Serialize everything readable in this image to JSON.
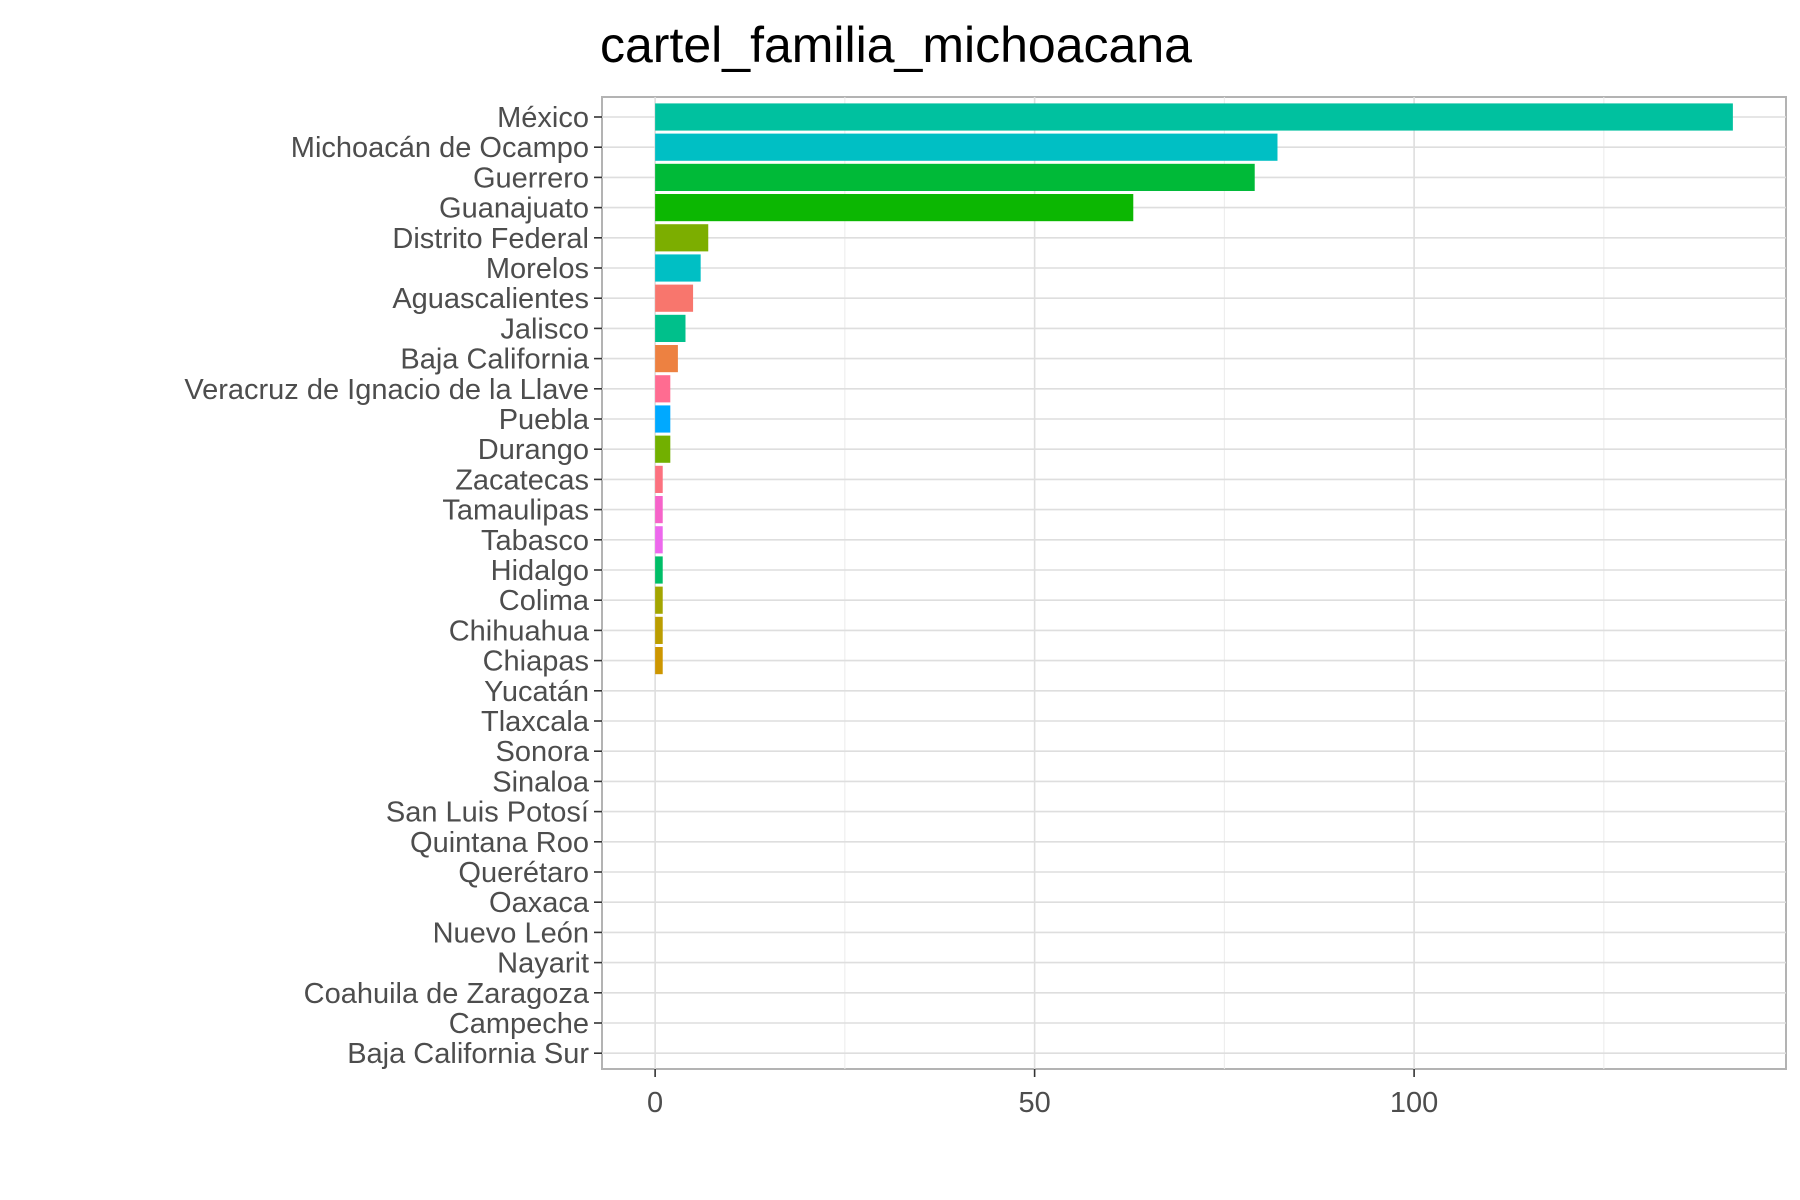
{
  "chart_data": {
    "type": "bar",
    "orientation": "horizontal",
    "title": "cartel_familia_michoacana",
    "xlabel": "",
    "ylabel": "",
    "xlim": [
      -7,
      149
    ],
    "x_ticks": [
      0,
      50,
      100
    ],
    "x_tick_labels": [
      "0",
      "50",
      "100"
    ],
    "grid": true,
    "legend": "none",
    "categories": [
      "México",
      "Michoacán de Ocampo",
      "Guerrero",
      "Guanajuato",
      "Distrito Federal",
      "Morelos",
      "Aguascalientes",
      "Jalisco",
      "Baja California",
      "Veracruz de Ignacio de la Llave",
      "Puebla",
      "Durango",
      "Zacatecas",
      "Tamaulipas",
      "Tabasco",
      "Hidalgo",
      "Colima",
      "Chihuahua",
      "Chiapas",
      "Yucatán",
      "Tlaxcala",
      "Sonora",
      "Sinaloa",
      "San Luis Potosí",
      "Quintana Roo",
      "Querétaro",
      "Oaxaca",
      "Nuevo León",
      "Nayarit",
      "Coahuila de Zaragoza",
      "Campeche",
      "Baja California Sur"
    ],
    "values": [
      142,
      82,
      79,
      63,
      7,
      6,
      5,
      4,
      3,
      2,
      2,
      2,
      1,
      1,
      1,
      1,
      1,
      1,
      1,
      0,
      0,
      0,
      0,
      0,
      0,
      0,
      0,
      0,
      0,
      0,
      0,
      0
    ],
    "colors": [
      "#00C19F",
      "#00BFC4",
      "#00BA38",
      "#0CB702",
      "#7CAE00",
      "#00BFC4",
      "#F8766D",
      "#00C08B",
      "#ED8141",
      "#FF6C91",
      "#00A9FF",
      "#72B000",
      "#FC717F",
      "#F663C9",
      "#ED68ED",
      "#00BE67",
      "#A3A500",
      "#BB9D00",
      "#CD9600",
      "#FFFFFF",
      "#FFFFFF",
      "#FFFFFF",
      "#FFFFFF",
      "#FFFFFF",
      "#FFFFFF",
      "#FFFFFF",
      "#FFFFFF",
      "#FFFFFF",
      "#FFFFFF",
      "#FFFFFF",
      "#FFFFFF",
      "#FFFFFF"
    ]
  }
}
